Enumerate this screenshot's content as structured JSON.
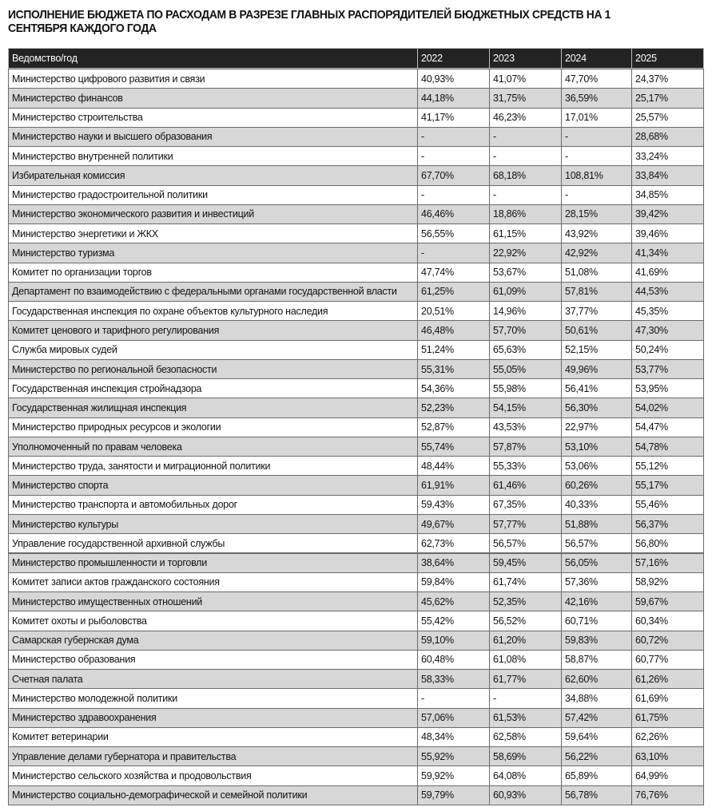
{
  "header": {
    "title": "ИСПОЛНЕНИЕ БЮДЖЕТА ПО РАСХОДАМ В РАЗРЕЗЕ ГЛАВНЫХ РАСПОРЯДИТЕЛЕЙ БЮДЖЕТНЫХ СРЕДСТВ НА 1 СЕНТЯБРЯ КАЖДОГО ГОДА"
  },
  "table": {
    "columns": [
      "Ведомство/год",
      "2022",
      "2023",
      "2024",
      "2025"
    ],
    "rows": [
      [
        "Министерство цифрового развития и связи",
        "40,93%",
        "41,07%",
        "47,70%",
        "24,37%"
      ],
      [
        "Министерство финансов",
        "44,18%",
        "31,75%",
        "36,59%",
        "25,17%"
      ],
      [
        "Министерство строительства",
        "41,17%",
        "46,23%",
        "17,01%",
        "25,57%"
      ],
      [
        "Министерство науки и высшего образования",
        "-",
        "-",
        "-",
        "28,68%"
      ],
      [
        "Министерство внутренней политики",
        "-",
        "-",
        "-",
        "33,24%"
      ],
      [
        "Избирательная комиссия",
        "67,70%",
        "68,18%",
        "108,81%",
        "33,84%"
      ],
      [
        "Министерство градостроительной политики",
        "-",
        "-",
        "-",
        "34,85%"
      ],
      [
        "Министерство экономического развития и инвестиций",
        "46,46%",
        "18,86%",
        "28,15%",
        "39,42%"
      ],
      [
        "Министерство энергетики и ЖКХ",
        "56,55%",
        "61,15%",
        "43,92%",
        "39,46%"
      ],
      [
        "Министерство туризма",
        "-",
        "22,92%",
        "42,92%",
        "41,34%"
      ],
      [
        "Комитет по организации торгов",
        "47,74%",
        "53,67%",
        "51,08%",
        "41,69%"
      ],
      [
        "Департамент по взаимодействию с федеральными органами государственной власти",
        "61,25%",
        "61,09%",
        "57,81%",
        "44,53%"
      ],
      [
        "Государственная инспекция по охране объектов культурного наследия",
        "20,51%",
        "14,96%",
        "37,77%",
        "45,35%"
      ],
      [
        "Комитет ценового и тарифного регулирования",
        "46,48%",
        "57,70%",
        "50,61%",
        "47,30%"
      ],
      [
        "Служба мировых судей",
        "51,24%",
        "65,63%",
        "52,15%",
        "50,24%"
      ],
      [
        "Министерство по региональной безопасности",
        "55,31%",
        "55,05%",
        "49,96%",
        "53,77%"
      ],
      [
        "Государственная инспекция стройнадзора",
        "54,36%",
        "55,98%",
        "56,41%",
        "53,95%"
      ],
      [
        "Государственная жилищная инспекция",
        "52,23%",
        "54,15%",
        "56,30%",
        "54,02%"
      ],
      [
        "Министерство природных ресурсов и экологии",
        "52,87%",
        "43,53%",
        "22,97%",
        "54,47%"
      ],
      [
        "Уполномоченный по правам человека",
        "55,74%",
        "57,87%",
        "53,10%",
        "54,78%"
      ],
      [
        "Министерство труда, занятости и миграционной политики",
        "48,44%",
        "55,33%",
        "53,06%",
        "55,12%"
      ],
      [
        "Министерство спорта",
        "61,91%",
        "61,46%",
        "60,26%",
        "55,17%"
      ],
      [
        "Министерство транспорта и автомобильных дорог",
        "59,43%",
        "67,35%",
        "40,33%",
        "55,46%"
      ],
      [
        "Министерство культуры",
        "49,67%",
        "57,77%",
        "51,88%",
        "56,37%"
      ],
      [
        "Управление государственной архивной службы",
        "62,73%",
        "56,57%",
        "56,57%",
        "56,80%"
      ],
      [
        "Министерство промышленности и торговли",
        "38,64%",
        "59,45%",
        "56,05%",
        "57,16%"
      ],
      [
        "Комитет записи актов гражданского состояния",
        "59,84%",
        "61,74%",
        "57,36%",
        "58,92%"
      ],
      [
        "Министерство имущественных отношений",
        "45,62%",
        "52,35%",
        "42,16%",
        "59,67%"
      ],
      [
        "Комитет охоты и рыболовства",
        "55,42%",
        "56,52%",
        "60,71%",
        "60,34%"
      ],
      [
        "Самарская губернская дума",
        "59,10%",
        "61,20%",
        "59,83%",
        "60,72%"
      ],
      [
        "Министерство образования",
        "60,48%",
        "61,08%",
        "58,87%",
        "60,77%"
      ],
      [
        "Счетная палата",
        "58,33%",
        "61,77%",
        "62,60%",
        "61,26%"
      ],
      [
        "Министерство молодежной политики",
        "-",
        "-",
        "34,88%",
        "61,69%"
      ],
      [
        "Министерство здравоохранения",
        "57,06%",
        "61,53%",
        "57,42%",
        "61,75%"
      ],
      [
        "Комитет ветеринарии",
        "48,34%",
        "62,58%",
        "59,64%",
        "62,26%"
      ],
      [
        "Управление делами губернатора и правительства",
        "55,92%",
        "58,69%",
        "56,22%",
        "63,10%"
      ],
      [
        "Министерство сельского хозяйства и продовольствия",
        "59,92%",
        "64,08%",
        "65,89%",
        "64,99%"
      ],
      [
        "Министерство социально-демографической и семейной политики",
        "59,79%",
        "60,93%",
        "56,78%",
        "76,76%"
      ]
    ]
  }
}
